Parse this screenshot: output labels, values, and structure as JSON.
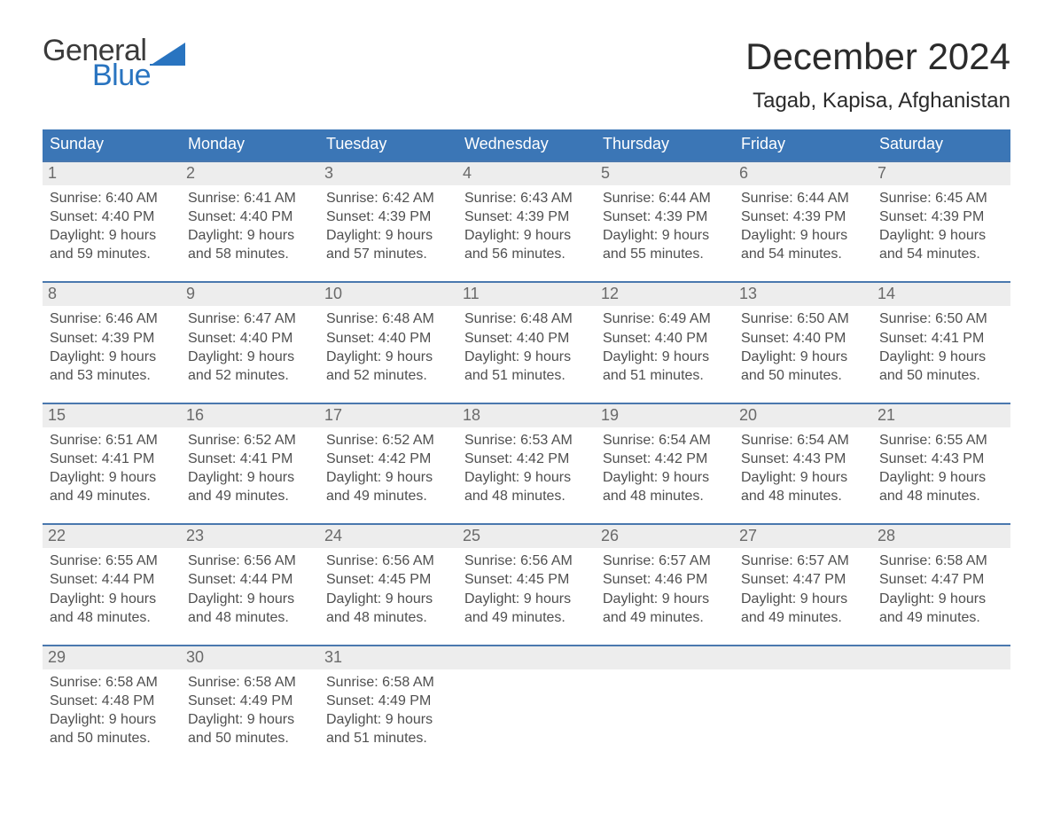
{
  "colors": {
    "accent": "#3b76b6",
    "row_stripe": "#ededed",
    "divider_blue": "#4a78ae",
    "logo_blue": "#2974c0",
    "text": "#333333",
    "background": "#ffffff"
  },
  "logo": {
    "word1": "General",
    "word2": "Blue"
  },
  "title": "December 2024",
  "location": "Tagab, Kapisa, Afghanistan",
  "days_of_week": [
    "Sunday",
    "Monday",
    "Tuesday",
    "Wednesday",
    "Thursday",
    "Friday",
    "Saturday"
  ],
  "labels": {
    "sunrise": "Sunrise:",
    "sunset": "Sunset:",
    "daylight_prefix": "Daylight:"
  },
  "weeks": [
    [
      {
        "n": "1",
        "sunrise": "6:40 AM",
        "sunset": "4:40 PM",
        "dl1": "Daylight: 9 hours",
        "dl2": "and 59 minutes."
      },
      {
        "n": "2",
        "sunrise": "6:41 AM",
        "sunset": "4:40 PM",
        "dl1": "Daylight: 9 hours",
        "dl2": "and 58 minutes."
      },
      {
        "n": "3",
        "sunrise": "6:42 AM",
        "sunset": "4:39 PM",
        "dl1": "Daylight: 9 hours",
        "dl2": "and 57 minutes."
      },
      {
        "n": "4",
        "sunrise": "6:43 AM",
        "sunset": "4:39 PM",
        "dl1": "Daylight: 9 hours",
        "dl2": "and 56 minutes."
      },
      {
        "n": "5",
        "sunrise": "6:44 AM",
        "sunset": "4:39 PM",
        "dl1": "Daylight: 9 hours",
        "dl2": "and 55 minutes."
      },
      {
        "n": "6",
        "sunrise": "6:44 AM",
        "sunset": "4:39 PM",
        "dl1": "Daylight: 9 hours",
        "dl2": "and 54 minutes."
      },
      {
        "n": "7",
        "sunrise": "6:45 AM",
        "sunset": "4:39 PM",
        "dl1": "Daylight: 9 hours",
        "dl2": "and 54 minutes."
      }
    ],
    [
      {
        "n": "8",
        "sunrise": "6:46 AM",
        "sunset": "4:39 PM",
        "dl1": "Daylight: 9 hours",
        "dl2": "and 53 minutes."
      },
      {
        "n": "9",
        "sunrise": "6:47 AM",
        "sunset": "4:40 PM",
        "dl1": "Daylight: 9 hours",
        "dl2": "and 52 minutes."
      },
      {
        "n": "10",
        "sunrise": "6:48 AM",
        "sunset": "4:40 PM",
        "dl1": "Daylight: 9 hours",
        "dl2": "and 52 minutes."
      },
      {
        "n": "11",
        "sunrise": "6:48 AM",
        "sunset": "4:40 PM",
        "dl1": "Daylight: 9 hours",
        "dl2": "and 51 minutes."
      },
      {
        "n": "12",
        "sunrise": "6:49 AM",
        "sunset": "4:40 PM",
        "dl1": "Daylight: 9 hours",
        "dl2": "and 51 minutes."
      },
      {
        "n": "13",
        "sunrise": "6:50 AM",
        "sunset": "4:40 PM",
        "dl1": "Daylight: 9 hours",
        "dl2": "and 50 minutes."
      },
      {
        "n": "14",
        "sunrise": "6:50 AM",
        "sunset": "4:41 PM",
        "dl1": "Daylight: 9 hours",
        "dl2": "and 50 minutes."
      }
    ],
    [
      {
        "n": "15",
        "sunrise": "6:51 AM",
        "sunset": "4:41 PM",
        "dl1": "Daylight: 9 hours",
        "dl2": "and 49 minutes."
      },
      {
        "n": "16",
        "sunrise": "6:52 AM",
        "sunset": "4:41 PM",
        "dl1": "Daylight: 9 hours",
        "dl2": "and 49 minutes."
      },
      {
        "n": "17",
        "sunrise": "6:52 AM",
        "sunset": "4:42 PM",
        "dl1": "Daylight: 9 hours",
        "dl2": "and 49 minutes."
      },
      {
        "n": "18",
        "sunrise": "6:53 AM",
        "sunset": "4:42 PM",
        "dl1": "Daylight: 9 hours",
        "dl2": "and 48 minutes."
      },
      {
        "n": "19",
        "sunrise": "6:54 AM",
        "sunset": "4:42 PM",
        "dl1": "Daylight: 9 hours",
        "dl2": "and 48 minutes."
      },
      {
        "n": "20",
        "sunrise": "6:54 AM",
        "sunset": "4:43 PM",
        "dl1": "Daylight: 9 hours",
        "dl2": "and 48 minutes."
      },
      {
        "n": "21",
        "sunrise": "6:55 AM",
        "sunset": "4:43 PM",
        "dl1": "Daylight: 9 hours",
        "dl2": "and 48 minutes."
      }
    ],
    [
      {
        "n": "22",
        "sunrise": "6:55 AM",
        "sunset": "4:44 PM",
        "dl1": "Daylight: 9 hours",
        "dl2": "and 48 minutes."
      },
      {
        "n": "23",
        "sunrise": "6:56 AM",
        "sunset": "4:44 PM",
        "dl1": "Daylight: 9 hours",
        "dl2": "and 48 minutes."
      },
      {
        "n": "24",
        "sunrise": "6:56 AM",
        "sunset": "4:45 PM",
        "dl1": "Daylight: 9 hours",
        "dl2": "and 48 minutes."
      },
      {
        "n": "25",
        "sunrise": "6:56 AM",
        "sunset": "4:45 PM",
        "dl1": "Daylight: 9 hours",
        "dl2": "and 49 minutes."
      },
      {
        "n": "26",
        "sunrise": "6:57 AM",
        "sunset": "4:46 PM",
        "dl1": "Daylight: 9 hours",
        "dl2": "and 49 minutes."
      },
      {
        "n": "27",
        "sunrise": "6:57 AM",
        "sunset": "4:47 PM",
        "dl1": "Daylight: 9 hours",
        "dl2": "and 49 minutes."
      },
      {
        "n": "28",
        "sunrise": "6:58 AM",
        "sunset": "4:47 PM",
        "dl1": "Daylight: 9 hours",
        "dl2": "and 49 minutes."
      }
    ],
    [
      {
        "n": "29",
        "sunrise": "6:58 AM",
        "sunset": "4:48 PM",
        "dl1": "Daylight: 9 hours",
        "dl2": "and 50 minutes."
      },
      {
        "n": "30",
        "sunrise": "6:58 AM",
        "sunset": "4:49 PM",
        "dl1": "Daylight: 9 hours",
        "dl2": "and 50 minutes."
      },
      {
        "n": "31",
        "sunrise": "6:58 AM",
        "sunset": "4:49 PM",
        "dl1": "Daylight: 9 hours",
        "dl2": "and 51 minutes."
      },
      {
        "empty": true
      },
      {
        "empty": true
      },
      {
        "empty": true
      },
      {
        "empty": true
      }
    ]
  ]
}
